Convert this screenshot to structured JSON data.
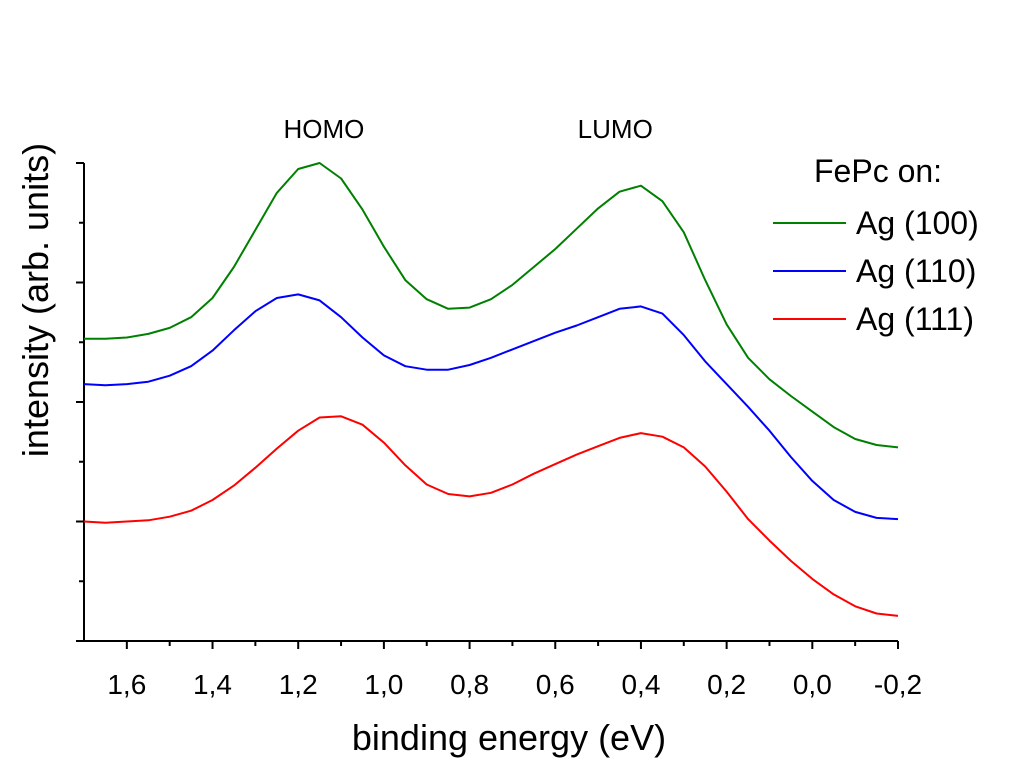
{
  "chart_data": {
    "type": "line",
    "title": "",
    "xlabel": "binding energy (eV)",
    "ylabel": "intensity (arb. units)",
    "xlim": [
      1.7,
      -0.2
    ],
    "ylim": [
      0,
      4
    ],
    "x_ticks": [
      1.6,
      1.4,
      1.2,
      1.0,
      0.8,
      0.6,
      0.4,
      0.2,
      0.0,
      -0.2
    ],
    "x_tick_labels": [
      "1,6",
      "1,4",
      "1,2",
      "1,0",
      "0,8",
      "0,6",
      "0,4",
      "0,2",
      "0,0",
      "-0,2"
    ],
    "y_ticks": [
      0,
      1,
      2,
      3,
      4
    ],
    "y_tick_labels": [
      "",
      "",
      "",
      "",
      ""
    ],
    "grid": false,
    "legend_title": "FePc on:",
    "legend_position": "top-right",
    "annotations": [
      {
        "text": "HOMO",
        "x": 1.14,
        "y": 4.21
      },
      {
        "text": "LUMO",
        "x": 0.46,
        "y": 4.21
      }
    ],
    "series": [
      {
        "name": "Ag (100)",
        "color": "#008000",
        "x": [
          1.7,
          1.65,
          1.6,
          1.55,
          1.5,
          1.45,
          1.4,
          1.35,
          1.3,
          1.25,
          1.2,
          1.15,
          1.1,
          1.05,
          1.0,
          0.95,
          0.9,
          0.85,
          0.8,
          0.75,
          0.7,
          0.65,
          0.6,
          0.55,
          0.5,
          0.45,
          0.4,
          0.35,
          0.3,
          0.25,
          0.2,
          0.15,
          0.1,
          0.05,
          0.0,
          -0.05,
          -0.1,
          -0.15,
          -0.2
        ],
        "values": [
          2.53,
          2.53,
          2.54,
          2.57,
          2.62,
          2.71,
          2.87,
          3.13,
          3.44,
          3.75,
          3.95,
          4.0,
          3.87,
          3.61,
          3.3,
          3.02,
          2.86,
          2.78,
          2.79,
          2.86,
          2.98,
          3.13,
          3.28,
          3.45,
          3.62,
          3.76,
          3.81,
          3.68,
          3.42,
          3.02,
          2.65,
          2.37,
          2.19,
          2.05,
          1.92,
          1.79,
          1.69,
          1.64,
          1.62
        ]
      },
      {
        "name": "Ag (110)",
        "color": "#0000ff",
        "x": [
          1.7,
          1.65,
          1.6,
          1.55,
          1.5,
          1.45,
          1.4,
          1.35,
          1.3,
          1.25,
          1.2,
          1.15,
          1.1,
          1.05,
          1.0,
          0.95,
          0.9,
          0.85,
          0.8,
          0.75,
          0.7,
          0.65,
          0.6,
          0.55,
          0.5,
          0.45,
          0.4,
          0.35,
          0.3,
          0.25,
          0.2,
          0.15,
          0.1,
          0.05,
          0.0,
          -0.05,
          -0.1,
          -0.15,
          -0.2
        ],
        "values": [
          2.15,
          2.14,
          2.15,
          2.17,
          2.22,
          2.3,
          2.43,
          2.6,
          2.76,
          2.87,
          2.9,
          2.85,
          2.71,
          2.54,
          2.39,
          2.3,
          2.27,
          2.27,
          2.31,
          2.37,
          2.44,
          2.51,
          2.58,
          2.64,
          2.71,
          2.78,
          2.8,
          2.74,
          2.56,
          2.34,
          2.15,
          1.96,
          1.76,
          1.54,
          1.34,
          1.18,
          1.08,
          1.03,
          1.02
        ]
      },
      {
        "name": "Ag (111)",
        "color": "#ff0000",
        "x": [
          1.7,
          1.65,
          1.6,
          1.55,
          1.5,
          1.45,
          1.4,
          1.35,
          1.3,
          1.25,
          1.2,
          1.15,
          1.1,
          1.05,
          1.0,
          0.95,
          0.9,
          0.85,
          0.8,
          0.75,
          0.7,
          0.65,
          0.6,
          0.55,
          0.5,
          0.45,
          0.4,
          0.35,
          0.3,
          0.25,
          0.2,
          0.15,
          0.1,
          0.05,
          0.0,
          -0.05,
          -0.1,
          -0.15,
          -0.2
        ],
        "values": [
          1.0,
          0.99,
          1.0,
          1.01,
          1.04,
          1.09,
          1.18,
          1.3,
          1.45,
          1.61,
          1.76,
          1.87,
          1.88,
          1.81,
          1.66,
          1.47,
          1.31,
          1.23,
          1.21,
          1.24,
          1.31,
          1.4,
          1.48,
          1.56,
          1.63,
          1.7,
          1.74,
          1.71,
          1.62,
          1.46,
          1.25,
          1.02,
          0.84,
          0.67,
          0.52,
          0.39,
          0.29,
          0.23,
          0.21
        ]
      }
    ]
  }
}
